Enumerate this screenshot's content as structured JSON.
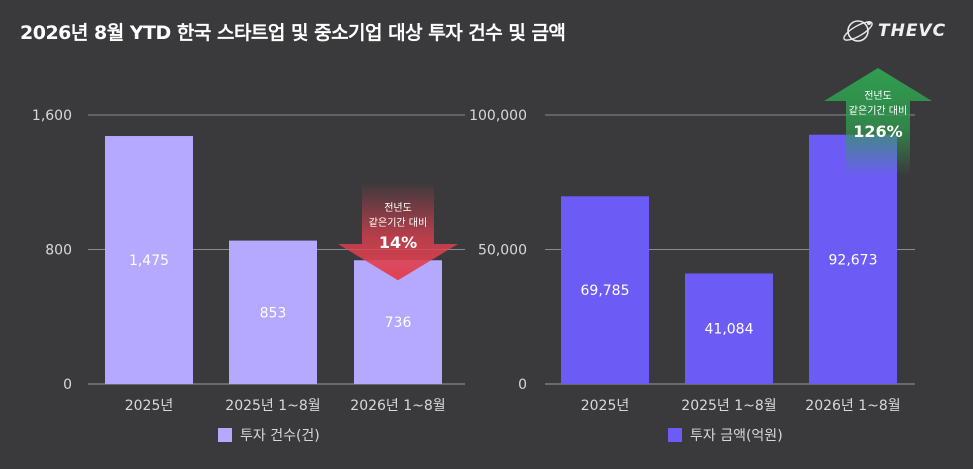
{
  "header": {
    "title": "2026년 8월 YTD 한국 스타트업 및 중소기업 대상 투자 건수 및 금액",
    "brand": "THEVC"
  },
  "chart_data": [
    {
      "type": "bar",
      "categories": [
        "2025년",
        "2025년 1~8월",
        "2026년 1~8월"
      ],
      "series": [
        {
          "name": "투자 건수(건)",
          "values": [
            1475,
            853,
            736
          ],
          "color": "#b4a8ff"
        }
      ],
      "value_labels": [
        "1,475",
        "853",
        "736"
      ],
      "yticks": [
        0,
        800,
        1600
      ],
      "ytick_labels": [
        "0",
        "800",
        "1,600"
      ],
      "ylim": [
        0,
        1600
      ],
      "grid": true,
      "legend": "bottom",
      "callout": {
        "line1": "전년도",
        "line2": "같은기간 대비",
        "value": "14%",
        "direction": "down",
        "color": "#e0404f"
      }
    },
    {
      "type": "bar",
      "categories": [
        "2025년",
        "2025년 1~8월",
        "2026년 1~8월"
      ],
      "series": [
        {
          "name": "투자 금액(억원)",
          "values": [
            69785,
            41084,
            92673
          ],
          "color": "#6c5cf5"
        }
      ],
      "value_labels": [
        "69,785",
        "41,084",
        "92,673"
      ],
      "yticks": [
        0,
        50000,
        100000
      ],
      "ytick_labels": [
        "0",
        "50,000",
        "100,000"
      ],
      "ylim": [
        0,
        100000
      ],
      "grid": true,
      "legend": "bottom",
      "callout": {
        "line1": "전년도",
        "line2": "같은기간 대비",
        "value": "126%",
        "direction": "up",
        "color": "#2f9e4f"
      }
    }
  ]
}
